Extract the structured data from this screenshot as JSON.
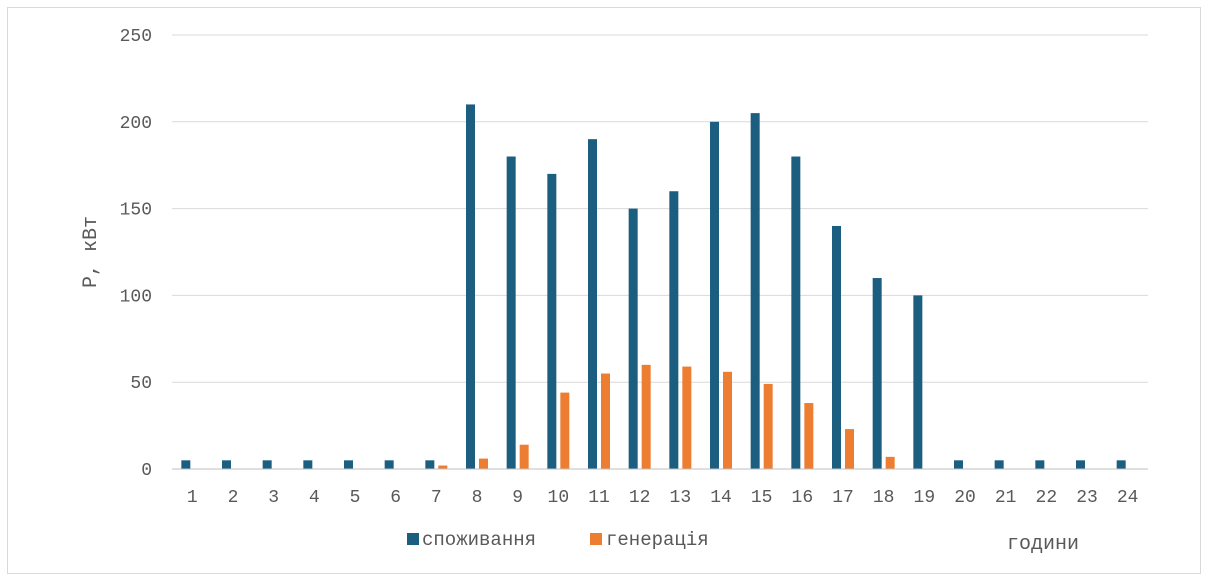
{
  "chart_data": {
    "type": "bar",
    "categories": [
      "1",
      "2",
      "3",
      "4",
      "5",
      "6",
      "7",
      "8",
      "9",
      "10",
      "11",
      "12",
      "13",
      "14",
      "15",
      "16",
      "17",
      "18",
      "19",
      "20",
      "21",
      "22",
      "23",
      "24"
    ],
    "series": [
      {
        "name": "споживання",
        "color": "#1b5e80",
        "values": [
          5,
          5,
          5,
          5,
          5,
          5,
          5,
          210,
          180,
          170,
          190,
          150,
          160,
          200,
          205,
          180,
          140,
          110,
          100,
          5,
          5,
          5,
          5,
          5
        ]
      },
      {
        "name": "генерація",
        "color": "#ed7d31",
        "values": [
          0,
          0,
          0,
          0,
          0,
          0,
          2,
          6,
          14,
          44,
          55,
          60,
          59,
          56,
          49,
          38,
          23,
          7,
          0,
          0,
          0,
          0,
          0,
          0
        ]
      }
    ],
    "ylabel": "P, кВт",
    "xlabel": "години",
    "ylim": [
      0,
      250
    ],
    "yticks": [
      0,
      50,
      100,
      150,
      200,
      250
    ],
    "grid": true,
    "legend": "bottom"
  }
}
